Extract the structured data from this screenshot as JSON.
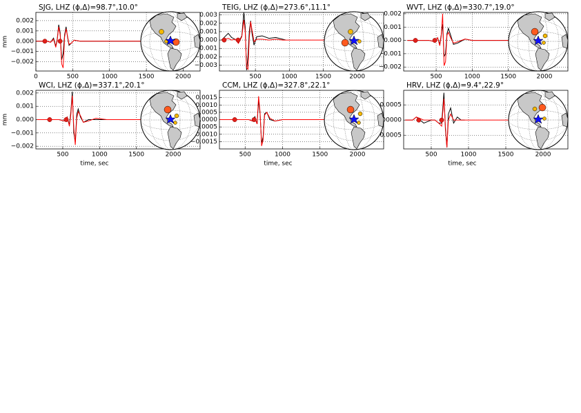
{
  "chart_data": [
    {
      "type": "line",
      "title": "SJG, LHZ (ϕ,Δ)=98.7°,10.0°",
      "ylabel": "mm",
      "x": [
        0,
        100,
        150,
        200,
        240,
        270,
        290,
        310,
        330,
        350,
        370,
        390,
        410,
        430,
        450,
        480,
        520,
        600,
        800,
        1000,
        1500,
        2000
      ],
      "series": [
        {
          "color": "#000000",
          "values": [
            0,
            0,
            0,
            -0.0001,
            0.0003,
            -0.0005,
            0.0002,
            0.0016,
            0.0008,
            -0.0018,
            -0.0012,
            0.0006,
            0.0014,
            0.0004,
            -0.0004,
            -0.0002,
            0.0001,
            0,
            0,
            0,
            0,
            0
          ]
        },
        {
          "color": "#ff0000",
          "values": [
            0,
            0,
            0,
            -0.0001,
            0.0002,
            -0.0006,
            0.0001,
            0.0014,
            0.0006,
            -0.0022,
            -0.0026,
            0.0004,
            0.0012,
            0.0005,
            -0.0003,
            -0.0002,
            0.0001,
            0,
            0,
            0,
            0,
            0
          ]
        }
      ],
      "picks": [
        122,
        329
      ],
      "xlim": [
        0,
        2230
      ],
      "ylim": [
        -0.0029,
        0.0028
      ],
      "xticks": [
        0,
        500,
        1000,
        1500,
        2000
      ],
      "yticks": [
        0.002,
        0.001,
        {
          "value": 0,
          "label": "0.000"
        },
        {
          "value": -0.001,
          "label": "−0.001"
        },
        {
          "value": -0.002,
          "label": "−0.002"
        }
      ],
      "grid": true
    },
    {
      "type": "line",
      "title": "TEIG, LHZ (ϕ,Δ)=273.6°,11.1°",
      "x": [
        0,
        100,
        150,
        200,
        250,
        300,
        330,
        350,
        370,
        390,
        410,
        430,
        450,
        480,
        520,
        600,
        700,
        800,
        900,
        950,
        1000,
        1500,
        2000
      ],
      "series": [
        {
          "color": "#000000",
          "values": [
            0,
            0.0008,
            0.0003,
            0.0001,
            -0.0003,
            0.0005,
            0.0033,
            0.0015,
            -0.0036,
            -0.002,
            0.001,
            0.0023,
            0.0008,
            -0.0006,
            0.0004,
            0.0005,
            0.0002,
            0.0003,
            0.0001,
            0,
            null,
            null,
            null
          ]
        },
        {
          "color": "#ff0000",
          "values": [
            0,
            0.0002,
            0,
            0.0001,
            -0.0004,
            0.0004,
            0.0024,
            0.001,
            -0.0033,
            -0.0035,
            0.0002,
            0.0022,
            0.0012,
            -0.0002,
            0.0001,
            0.0001,
            0,
            0.0001,
            0,
            0,
            0,
            0,
            0
          ]
        }
      ],
      "picks": [
        40,
        245
      ],
      "xlim": [
        -30,
        2390
      ],
      "ylim": [
        -0.0037,
        0.0033
      ],
      "xticks": [
        500,
        1000,
        1500,
        2000
      ],
      "yticks": [
        0.003,
        0.002,
        0.001,
        {
          "value": 0,
          "label": "0.000"
        },
        {
          "value": -0.001,
          "label": "−0.001"
        },
        {
          "value": -0.002,
          "label": "−0.002"
        },
        {
          "value": -0.003,
          "label": "−0.003"
        }
      ],
      "grid": true
    },
    {
      "type": "line",
      "title": "WVT, LHZ (ϕ,Δ)=330.7°,19.0°",
      "x": [
        100,
        200,
        300,
        400,
        480,
        520,
        550,
        570,
        590,
        610,
        630,
        650,
        670,
        700,
        740,
        800,
        900,
        1000,
        1200,
        1500,
        2000
      ],
      "series": [
        {
          "color": "#000000",
          "values": [
            0,
            0,
            0,
            0,
            -0.0001,
            0.0002,
            -0.0003,
            0.0004,
            0.0012,
            -0.0012,
            -0.001,
            0.0005,
            0.0009,
            0.0004,
            -0.0003,
            -0.0002,
            0.0001,
            0,
            0,
            0,
            0
          ]
        },
        {
          "color": "#ff0000",
          "values": [
            0,
            0,
            0,
            0,
            -0.0001,
            0.0002,
            -0.0004,
            0.0003,
            0.002,
            -0.0019,
            -0.0016,
            0.0004,
            0.0006,
            0.0002,
            -0.0002,
            -0.0001,
            0.0001,
            0,
            0,
            0,
            0
          ]
        }
      ],
      "picks": [
        213,
        481
      ],
      "xlim": [
        50,
        2325
      ],
      "ylim": [
        -0.0023,
        0.0021
      ],
      "xticks": [
        500,
        1000,
        1500,
        2000
      ],
      "yticks": [
        0.002,
        0.001,
        {
          "value": 0,
          "label": "0.000"
        },
        {
          "value": -0.001,
          "label": "−0.001"
        },
        {
          "value": -0.002,
          "label": "−0.002"
        }
      ],
      "grid": true
    },
    {
      "type": "line",
      "title": "WCI, LHZ (ϕ,Δ)=337.1°,20.1°",
      "ylabel": "mm",
      "xlabel": "time, sec",
      "x": [
        150,
        250,
        350,
        450,
        520,
        560,
        590,
        610,
        630,
        650,
        670,
        690,
        710,
        740,
        780,
        850,
        950,
        1100,
        1500,
        2000
      ],
      "series": [
        {
          "color": "#000000",
          "values": [
            0,
            0,
            0,
            0,
            -0.0001,
            0.0002,
            -0.0004,
            0.0006,
            0.0021,
            -0.001,
            -0.0017,
            0.0004,
            0.0008,
            0.0002,
            -0.0002,
            0,
            0,
            0,
            0,
            0
          ]
        },
        {
          "color": "#ff0000",
          "values": [
            0,
            0,
            0,
            0,
            -0.0001,
            0.0002,
            -0.0005,
            0.0004,
            0.0018,
            -0.0006,
            -0.0019,
            0.0001,
            0.0006,
            0.0003,
            -0.0002,
            -0.0001,
            0.0001,
            0,
            0,
            0
          ]
        }
      ],
      "picks": [
        322,
        547
      ],
      "xlim": [
        135,
        2365
      ],
      "ylim": [
        -0.0022,
        0.0022
      ],
      "xticks": [
        500,
        1000,
        1500,
        2000
      ],
      "yticks": [
        0.002,
        0.001,
        {
          "value": 0,
          "label": "0.000"
        },
        {
          "value": -0.001,
          "label": "−0.001"
        },
        {
          "value": -0.002,
          "label": "−0.002"
        }
      ],
      "grid": true
    },
    {
      "type": "line",
      "title": "CCM, LHZ (ϕ,Δ)=327.8°,22.1°",
      "xlabel": "time, sec",
      "x": [
        160,
        300,
        450,
        550,
        600,
        630,
        660,
        680,
        700,
        720,
        740,
        760,
        790,
        830,
        900,
        1000,
        1100,
        1500,
        2000
      ],
      "series": [
        {
          "color": "#000000",
          "values": [
            0,
            0,
            0,
            0,
            -0.0001,
            0.0002,
            -0.0003,
            0.0013,
            0.0004,
            -0.0016,
            -0.0012,
            0.0004,
            0.0005,
            0,
            -0.0001,
            0,
            0,
            0,
            0
          ]
        },
        {
          "color": "#ff0000",
          "values": [
            0,
            0,
            0,
            0,
            -0.0001,
            0.0001,
            -0.0003,
            0.0016,
            0.0005,
            -0.0018,
            -0.0014,
            0.0003,
            0.0005,
            0.0001,
            -0.0001,
            0,
            0,
            0,
            0
          ]
        }
      ],
      "picks": [
        361,
        620
      ],
      "xlim": [
        157,
        2350
      ],
      "ylim": [
        -0.002,
        0.002
      ],
      "xticks": [
        500,
        1000,
        1500,
        2000
      ],
      "yticks": [
        0.0015,
        {
          "value": 0.001,
          "label": "0.0010"
        },
        0.0005,
        {
          "value": 0,
          "label": "0.0000"
        },
        {
          "value": -0.0005,
          "label": "−0.0005"
        },
        {
          "value": -0.001,
          "label": "−0.0010"
        },
        {
          "value": -0.0015,
          "label": "−0.0015"
        }
      ],
      "grid": true
    },
    {
      "type": "line",
      "title": "HRV, LHZ (ϕ,Δ)=9.4°,22.9°",
      "xlabel": "time, sec",
      "x": [
        150,
        250,
        300,
        400,
        500,
        550,
        600,
        640,
        670,
        690,
        710,
        730,
        760,
        800,
        850,
        900,
        950,
        1000,
        1500,
        2000
      ],
      "series": [
        {
          "color": "#000000",
          "values": [
            0,
            0,
            0.0001,
            -0.0001,
            0,
            0,
            -0.0001,
            -0.0001,
            0.0009,
            -0.0003,
            -0.0009,
            0.0002,
            0.0004,
            -0.0001,
            0.0001,
            0,
            0,
            null,
            null,
            null
          ]
        },
        {
          "color": "#ff0000",
          "values": [
            0,
            0,
            0.0001,
            0,
            0,
            0,
            -0.0001,
            -0.0002,
            0.0007,
            -0.0002,
            -0.0009,
            0,
            0.0002,
            0,
            0,
            0,
            0,
            0,
            0,
            0
          ]
        }
      ],
      "picks": [
        333,
        640
      ],
      "xlim": [
        130,
        2333
      ],
      "ylim": [
        -0.00095,
        0.00098
      ],
      "xticks": [
        500,
        1000,
        1500,
        2000
      ],
      "yticks": [
        0.0005,
        {
          "value": 0,
          "label": "0.00000"
        },
        {
          "value": -0.0005,
          "label": "−0.0005"
        }
      ],
      "grid": true
    }
  ]
}
